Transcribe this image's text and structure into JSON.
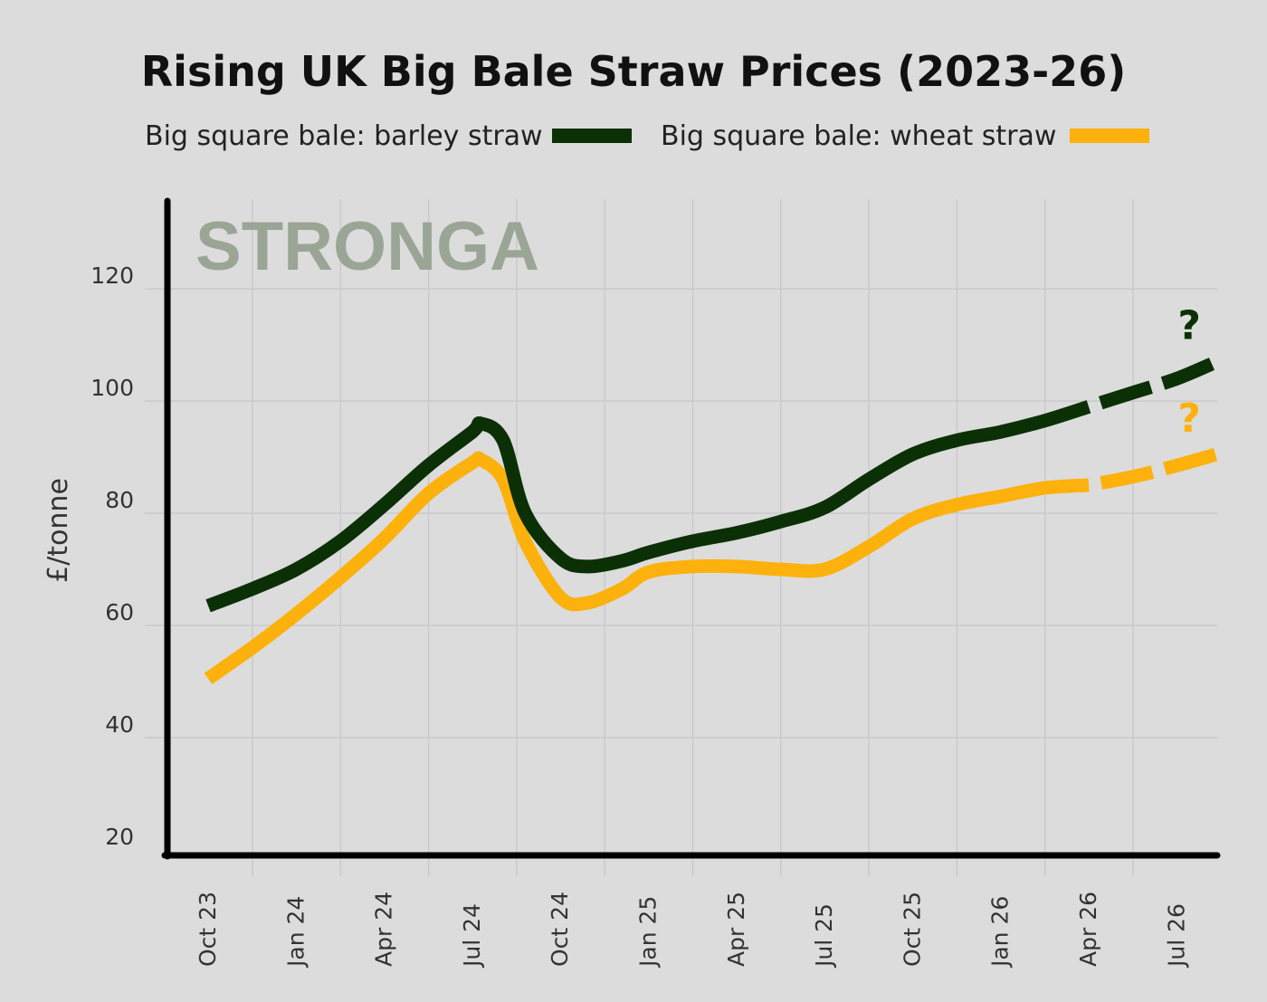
{
  "chart_data": {
    "type": "line",
    "title": "Rising UK Big Bale Straw Prices (2023-26)",
    "ylabel": "£/tonne",
    "xlabel": "",
    "watermark": "STRONGA",
    "categories": [
      "Oct 23",
      "Jan 24",
      "Apr 24",
      "Jul 24",
      "Oct 24",
      "Jan 25",
      "Apr 25",
      "Jul 25",
      "Oct 25",
      "Jan 26",
      "Apr 26",
      "Jul 26"
    ],
    "yticks": [
      20,
      40,
      60,
      80,
      100,
      120
    ],
    "ylim": [
      19,
      136
    ],
    "grid": true,
    "legend_position": "top",
    "projection_marker": "?",
    "series": [
      {
        "name": "Big square bale: barley straw",
        "color": "#0b3006",
        "x": [
          0,
          0.5,
          1,
          1.5,
          2,
          2.5,
          3,
          3.1,
          3.35,
          3.6,
          4,
          4.3,
          4.7,
          5,
          5.5,
          6,
          6.5,
          7,
          7.5,
          8,
          8.5,
          9,
          9.5,
          10
        ],
        "values": [
          63.5,
          66.5,
          70,
          75,
          81.5,
          88.5,
          94.5,
          96,
          93,
          80,
          72,
          70.5,
          71.5,
          73,
          75,
          76.5,
          78.5,
          81,
          86,
          90.5,
          93,
          94.5,
          96.5,
          99
        ],
        "projection_x": [
          10.5,
          11,
          11.45
        ],
        "projection_values": [
          101.5,
          104,
          107
        ]
      },
      {
        "name": "Big square bale: wheat straw",
        "color": "#fdb10c",
        "x": [
          0,
          0.5,
          1,
          1.5,
          2,
          2.5,
          3,
          3.1,
          3.35,
          3.6,
          4,
          4.3,
          4.7,
          5,
          5.5,
          6,
          6.5,
          7,
          7.5,
          8,
          8.5,
          9,
          9.5,
          10
        ],
        "values": [
          50.5,
          56,
          62,
          68.5,
          75.5,
          83.5,
          89,
          89.5,
          86,
          75,
          65,
          64,
          66.5,
          69.5,
          70.5,
          70.5,
          70,
          70,
          74,
          79,
          81.5,
          83,
          84.5,
          85
        ],
        "projection_x": [
          10.5,
          11,
          11.45
        ],
        "projection_values": [
          86.5,
          88.5,
          90.5
        ]
      }
    ]
  }
}
